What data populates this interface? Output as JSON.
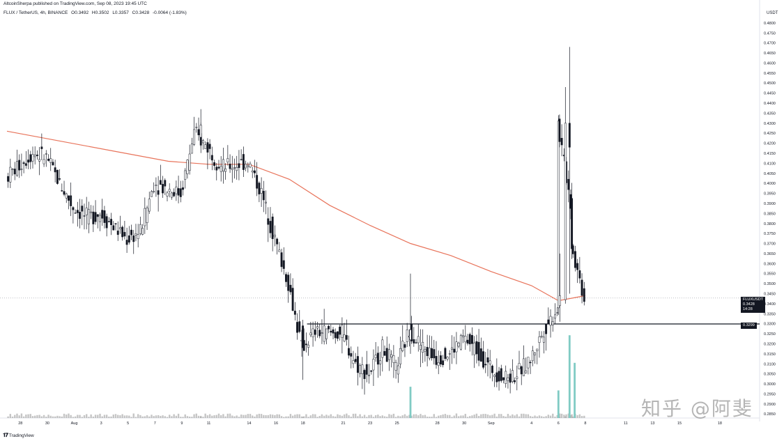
{
  "header": {
    "published_by": "AltcoinSherpa published on TradingView.com, Sep 08, 2023 19:45 UTC",
    "symbol": "FLUX / TetherUS, 4h, BINANCE",
    "ohlc": {
      "open": "O0.3492",
      "high": "H0.3502",
      "low": "L0.3357",
      "close": "C0.3428",
      "change": "-0.0064 (-1.83%)"
    }
  },
  "axis_unit": "USDT",
  "current_price": {
    "symbol": "FLUXUSDT",
    "price": "0.3428",
    "countdown": "14:28"
  },
  "level_label": "0.3299",
  "footer": {
    "brand": "TradingView",
    "watermark": "知乎 @阿斐"
  },
  "colors": {
    "up": "#131722",
    "down": "#131722",
    "ma": "#e8735a",
    "volume": "#9e9e9e",
    "volume_spike": "#80cbc4",
    "horizontal_line": "#131722"
  },
  "chart_data": {
    "type": "candlestick",
    "title": "",
    "timeframe": "4h",
    "y_scale": "linear",
    "ylim": [
      0.283,
      0.481
    ],
    "y_ticks": [
      "0.4800",
      "0.4750",
      "0.4700",
      "0.4650",
      "0.4600",
      "0.4550",
      "0.4500",
      "0.4450",
      "0.4400",
      "0.4350",
      "0.4300",
      "0.4250",
      "0.4200",
      "0.4150",
      "0.4100",
      "0.4050",
      "0.4000",
      "0.3950",
      "0.3900",
      "0.3850",
      "0.3800",
      "0.3750",
      "0.3700",
      "0.3650",
      "0.3600",
      "0.3550",
      "0.3500",
      "0.3450",
      "0.3400",
      "0.3350",
      "0.3300",
      "0.3250",
      "0.3200",
      "0.3150",
      "0.3100",
      "0.3050",
      "0.3000",
      "0.2950",
      "0.2900",
      "0.2850"
    ],
    "x_ticks": [
      "28",
      "30",
      "Aug",
      "3",
      "5",
      "7",
      "9",
      "11",
      "14",
      "16",
      "18",
      "21",
      "23",
      "25",
      "28",
      "30",
      "Sep",
      "4",
      "6",
      "8",
      "11",
      "13",
      "15",
      "18"
    ],
    "horizontal_level": 0.3299,
    "current_price": 0.3428,
    "ma_line": [
      {
        "x": "Jul 27",
        "y": 0.426
      },
      {
        "x": "Jul 31",
        "y": 0.421
      },
      {
        "x": "Aug 4",
        "y": 0.416
      },
      {
        "x": "Aug 8",
        "y": 0.411
      },
      {
        "x": "Aug 11",
        "y": 0.4095
      },
      {
        "x": "Aug 14",
        "y": 0.4095
      },
      {
        "x": "Aug 17",
        "y": 0.402
      },
      {
        "x": "Aug 20",
        "y": 0.389
      },
      {
        "x": "Aug 23",
        "y": 0.379
      },
      {
        "x": "Aug 26",
        "y": 0.37
      },
      {
        "x": "Aug 29",
        "y": 0.364
      },
      {
        "x": "Sep 1",
        "y": 0.356
      },
      {
        "x": "Sep 4",
        "y": 0.349
      },
      {
        "x": "Sep 6",
        "y": 0.3415
      },
      {
        "x": "Sep 8",
        "y": 0.344
      }
    ],
    "price_path": [
      {
        "x": "Jul 27",
        "y": 0.403
      },
      {
        "x": "Jul 29",
        "y": 0.415
      },
      {
        "x": "Jul 30",
        "y": 0.413
      },
      {
        "x": "Jul 31",
        "y": 0.4
      },
      {
        "x": "Aug 1",
        "y": 0.388
      },
      {
        "x": "Aug 2",
        "y": 0.383
      },
      {
        "x": "Aug 3",
        "y": 0.385
      },
      {
        "x": "Aug 5",
        "y": 0.372
      },
      {
        "x": "Aug 6",
        "y": 0.376
      },
      {
        "x": "Aug 7",
        "y": 0.4
      },
      {
        "x": "Aug 9",
        "y": 0.395
      },
      {
        "x": "Aug 10",
        "y": 0.425
      },
      {
        "x": "Aug 11",
        "y": 0.418
      },
      {
        "x": "Aug 12",
        "y": 0.408
      },
      {
        "x": "Aug 13",
        "y": 0.409
      },
      {
        "x": "Aug 14",
        "y": 0.411
      },
      {
        "x": "Aug 15",
        "y": 0.395
      },
      {
        "x": "Aug 16",
        "y": 0.372
      },
      {
        "x": "Aug 17",
        "y": 0.35
      },
      {
        "x": "Aug 18",
        "y": 0.318
      },
      {
        "x": "Aug 19",
        "y": 0.326
      },
      {
        "x": "Aug 21",
        "y": 0.325
      },
      {
        "x": "Aug 22",
        "y": 0.31
      },
      {
        "x": "Aug 23",
        "y": 0.305
      },
      {
        "x": "Aug 24",
        "y": 0.318
      },
      {
        "x": "Aug 25",
        "y": 0.308
      },
      {
        "x": "Aug 26",
        "y": 0.327
      },
      {
        "x": "Aug 27",
        "y": 0.318
      },
      {
        "x": "Aug 28",
        "y": 0.313
      },
      {
        "x": "Aug 29",
        "y": 0.315
      },
      {
        "x": "Aug 30",
        "y": 0.323
      },
      {
        "x": "Aug 31",
        "y": 0.317
      },
      {
        "x": "Sep 1",
        "y": 0.308
      },
      {
        "x": "Sep 2",
        "y": 0.303
      },
      {
        "x": "Sep 3",
        "y": 0.305
      },
      {
        "x": "Sep 4",
        "y": 0.312
      },
      {
        "x": "Sep 5",
        "y": 0.327
      },
      {
        "x": "Sep 6",
        "y": 0.338
      },
      {
        "x": "Sep 6",
        "y": 0.43
      },
      {
        "x": "Sep 7",
        "y": 0.39
      },
      {
        "x": "Sep 7",
        "y": 0.37
      },
      {
        "x": "Sep 8",
        "y": 0.3428
      }
    ],
    "volume_spikes": [
      {
        "x": "Aug 26",
        "y": 3.4
      },
      {
        "x": "Sep 6",
        "y": 3.0
      },
      {
        "x": "Sep 6",
        "y": 9.0
      },
      {
        "x": "Sep 7",
        "y": 6.0
      }
    ]
  }
}
